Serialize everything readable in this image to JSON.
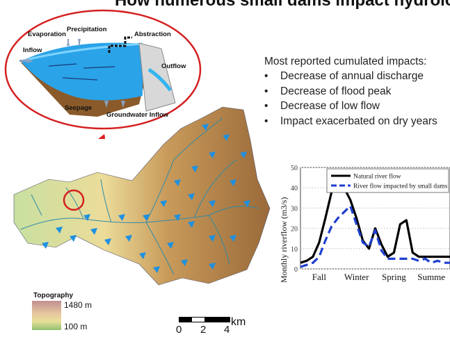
{
  "title": "How numerous small  dams impact hydrolog",
  "reservoir_diagram": {
    "labels": {
      "evaporation": "Evaporation",
      "precipitation": "Precipitation",
      "abstraction": "Abstraction",
      "inflow": "Inflow",
      "outflow": "Outflow",
      "seepage": "Seepage",
      "groundwater": "Groundwater Inflow"
    }
  },
  "impacts": {
    "heading": "Most reported cumulated impacts:",
    "items": [
      "Decrease of annual discharge",
      "Decrease of flood peak",
      "Decrease of low flow",
      "Impact exacerbated on dry years"
    ]
  },
  "map_legend": {
    "title": "Topography",
    "high": "1480 m",
    "low": "100 m"
  },
  "scale_bar": {
    "ticks": [
      "0",
      "2",
      "4"
    ],
    "unit": "km"
  },
  "chart_data": {
    "type": "line",
    "ylabel": "Monthly riverflow (m3/s)",
    "ylim": [
      0,
      50
    ],
    "yticks": [
      "0",
      "10",
      "20",
      "30",
      "40",
      "50"
    ],
    "season_labels": [
      "Fall",
      "Winter",
      "Spring",
      "Summe"
    ],
    "x": [
      0,
      0.5,
      1,
      1.5,
      2,
      2.5,
      3,
      3.5,
      4,
      4.5,
      5,
      5.5,
      6,
      6.5,
      7,
      7.5,
      8,
      8.5,
      9,
      9.5,
      10,
      10.5,
      11,
      11.5,
      12
    ],
    "series": [
      {
        "name": "Natural river flow",
        "color": "#000000",
        "dash": "solid",
        "values": [
          3,
          4,
          6,
          13,
          25,
          38,
          42,
          40,
          34,
          25,
          14,
          10,
          20,
          12,
          6,
          8,
          22,
          24,
          8,
          6,
          6,
          6,
          6,
          6,
          6
        ]
      },
      {
        "name": "River flow  impacted by small dams",
        "color": "#1f3fd0",
        "dash": "dashed",
        "values": [
          1,
          2,
          3,
          6,
          14,
          21,
          25,
          28,
          31,
          22,
          13,
          11,
          19,
          9,
          5,
          5,
          5,
          5,
          5,
          4,
          5,
          3,
          4,
          3,
          3
        ]
      }
    ]
  },
  "colors": {
    "circle": "#d42020",
    "water": "#2aa3e8",
    "dam_marker": "#1e90e0",
    "natural": "#000000",
    "impacted": "#1f3fd0"
  }
}
